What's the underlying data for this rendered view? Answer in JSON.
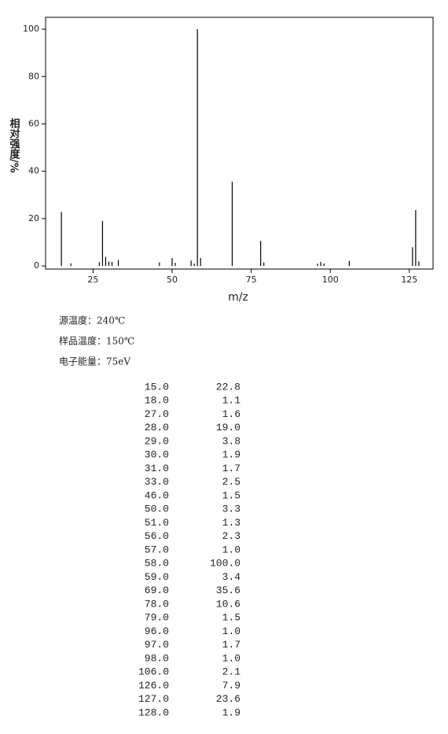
{
  "chart_data": {
    "type": "bar",
    "xlabel": "m/z",
    "ylabel": "相对强度/%",
    "x": [
      15,
      18,
      27,
      28,
      29,
      30,
      31,
      33,
      46,
      50,
      51,
      56,
      57,
      58,
      59,
      69,
      78,
      79,
      96,
      97,
      98,
      106,
      126,
      127,
      128
    ],
    "values": [
      22.8,
      1.1,
      1.6,
      19.0,
      3.8,
      1.9,
      1.7,
      2.5,
      1.5,
      3.3,
      1.3,
      2.3,
      1.0,
      100.0,
      3.4,
      35.6,
      10.6,
      1.5,
      1.0,
      1.7,
      1.0,
      2.1,
      7.9,
      23.6,
      1.9
    ],
    "color": "#000000",
    "xlim": [
      10,
      132.5
    ],
    "xticks": [
      25,
      50,
      75,
      100,
      125
    ],
    "ylim": [
      -1.3,
      105
    ],
    "yticks": [
      0,
      20,
      40,
      60,
      80,
      100
    ]
  },
  "conditions": [
    "源温度：240℃",
    "样品温度：150℃",
    "电子能量：75eV"
  ],
  "table": {
    "rows": [
      [
        "15.0",
        "22.8"
      ],
      [
        "18.0",
        "1.1"
      ],
      [
        "27.0",
        "1.6"
      ],
      [
        "28.0",
        "19.0"
      ],
      [
        "29.0",
        "3.8"
      ],
      [
        "30.0",
        "1.9"
      ],
      [
        "31.0",
        "1.7"
      ],
      [
        "33.0",
        "2.5"
      ],
      [
        "46.0",
        "1.5"
      ],
      [
        "50.0",
        "3.3"
      ],
      [
        "51.0",
        "1.3"
      ],
      [
        "56.0",
        "2.3"
      ],
      [
        "57.0",
        "1.0"
      ],
      [
        "58.0",
        "100.0"
      ],
      [
        "59.0",
        "3.4"
      ],
      [
        "69.0",
        "35.6"
      ],
      [
        "78.0",
        "10.6"
      ],
      [
        "79.0",
        "1.5"
      ],
      [
        "96.0",
        "1.0"
      ],
      [
        "97.0",
        "1.7"
      ],
      [
        "98.0",
        "1.0"
      ],
      [
        "106.0",
        "2.1"
      ],
      [
        "126.0",
        "7.9"
      ],
      [
        "127.0",
        "23.6"
      ],
      [
        "128.0",
        "1.9"
      ]
    ]
  }
}
